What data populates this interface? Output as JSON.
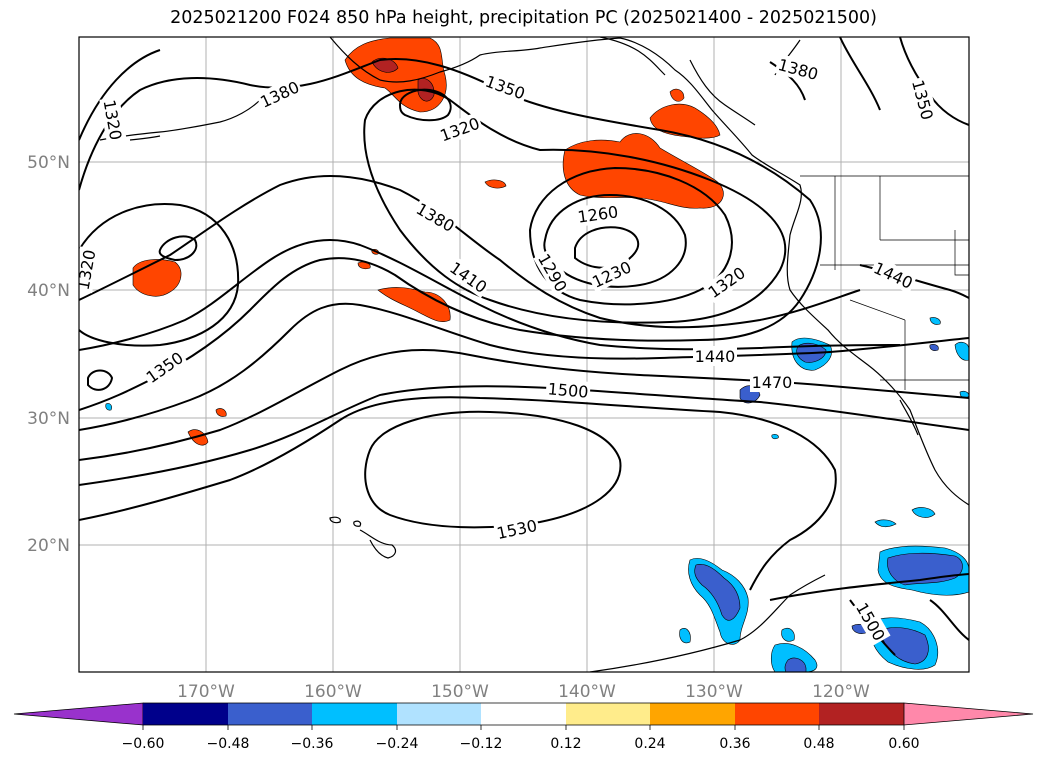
{
  "title": "2025021200 F024 850 hPa height, precipitation PC (2025021400 - 2025021500)",
  "map": {
    "lon_labels": [
      "170°W",
      "160°W",
      "150°W",
      "140°W",
      "130°W",
      "120°W"
    ],
    "lat_labels": [
      "50°N",
      "40°N",
      "30°N",
      "20°N"
    ],
    "contour_labels": {
      "c1320_a": "1320",
      "c1380_a": "1380",
      "c1350_a": "1350",
      "c1320_b": "1320",
      "c1380_b": "1380",
      "c1350_b": "1350",
      "c1320_c": "1320",
      "c1380_c": "1380",
      "c1260": "1260",
      "c1410": "1410",
      "c1290": "1290",
      "c1230": "1230",
      "c1320_d": "1320",
      "c1440_a": "1440",
      "c1350_c": "1350",
      "c1440_b": "1440",
      "c1470": "1470",
      "c1500_a": "1500",
      "c1530": "1530",
      "c1500_b": "1500"
    }
  },
  "colorbar": {
    "ticks": [
      "−0.60",
      "−0.48",
      "−0.36",
      "−0.24",
      "−0.12",
      "0.12",
      "0.24",
      "0.36",
      "0.48",
      "0.60"
    ],
    "colors": [
      "#9932CC",
      "#00008B",
      "#3A5FCD",
      "#00BFFF",
      "#B0E2FF",
      "#FFFFFF",
      "#FFEC8B",
      "#FFA500",
      "#FF4500",
      "#B22222",
      "#FF88AA"
    ]
  }
}
